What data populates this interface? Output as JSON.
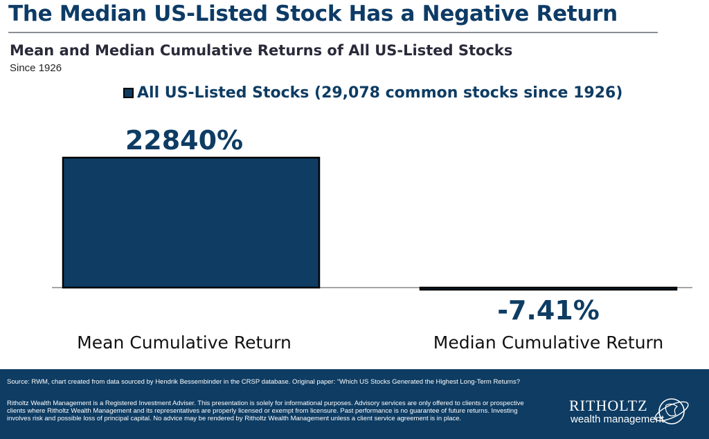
{
  "headline": "The Median US-Listed Stock Has a Negative Return",
  "subtitle": "Mean and Median Cumulative Returns of All US-Listed Stocks",
  "since": "Since 1926",
  "colors": {
    "bar": "#0e3c63",
    "label": "#0e3c63",
    "footer": "#0e3c63"
  },
  "chart_data": {
    "type": "bar",
    "title": "Mean and Median Cumulative Returns of All US-Listed Stocks",
    "subtitle": "Since 1926",
    "categories": [
      "Mean Cumulative Return",
      "Median Cumulative Return"
    ],
    "series": [
      {
        "name": "All US-Listed Stocks (29,078 common stocks since 1926)",
        "values": [
          22840,
          -7.41
        ]
      }
    ],
    "data_labels": [
      "22840%",
      "-7.41%"
    ],
    "unit": "%",
    "ylim": [
      -50,
      22840
    ],
    "grid": false,
    "legend": "top-center"
  },
  "footer": {
    "source": "Source: RWM, chart created from data sourced by Hendrik Bessembinder in the CRSP database. Original paper:  “Which US Stocks Generated the Highest Long-Term Returns?",
    "disclaimer": "Ritholtz Wealth Management is a Registered Investment Adviser. This presentation is solely for informational purposes. Advisory services are only offered to clients or prospective clients where Ritholtz Wealth Management and its representatives are properly licensed or exempt from licensure. Past performance is no guarantee of future returns. Investing involves risk and possible loss of principal capital. No advice may be rendered by Ritholtz Wealth Management unless a client service agreement is in place.",
    "logo_name": "RITHOLTZ",
    "logo_sub": "wealth management"
  }
}
